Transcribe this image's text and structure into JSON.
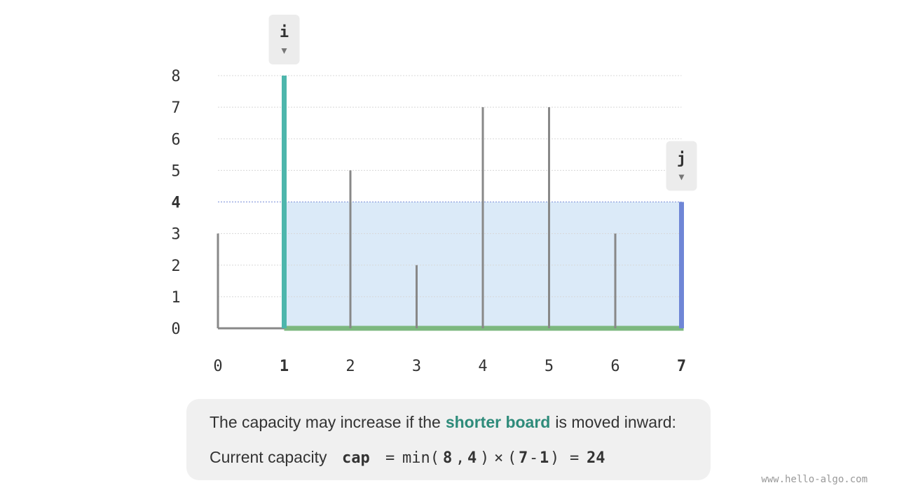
{
  "chart_data": {
    "type": "bar",
    "categories": [
      "0",
      "1",
      "2",
      "3",
      "4",
      "5",
      "6",
      "7"
    ],
    "values": [
      3,
      8,
      5,
      2,
      7,
      7,
      3,
      4
    ],
    "ylim": [
      0,
      8
    ],
    "yticks": [
      0,
      1,
      2,
      3,
      4,
      5,
      6,
      7,
      8
    ],
    "grid": true,
    "color": "#888888",
    "pointers": [
      {
        "label": "i",
        "index": 1,
        "color": "#4db6ac",
        "text_color": "#2e8b7a"
      },
      {
        "label": "j",
        "index": 7,
        "color": "#6f86d6",
        "text_color": "#2f4fc0"
      }
    ],
    "water_color": "#dbeaf8",
    "floor_color": "#7cb87f"
  },
  "caption": {
    "line1": [
      "The capacity may increase if the",
      "shorter board",
      "is moved inward:"
    ],
    "label": "Current capacity",
    "formula": [
      "cap",
      "=",
      "min(",
      "8",
      ",",
      "4",
      ")",
      "×",
      "(",
      "7",
      "-",
      "1",
      ")",
      "=",
      "24"
    ]
  },
  "watermark": "www.hello-algo.com"
}
